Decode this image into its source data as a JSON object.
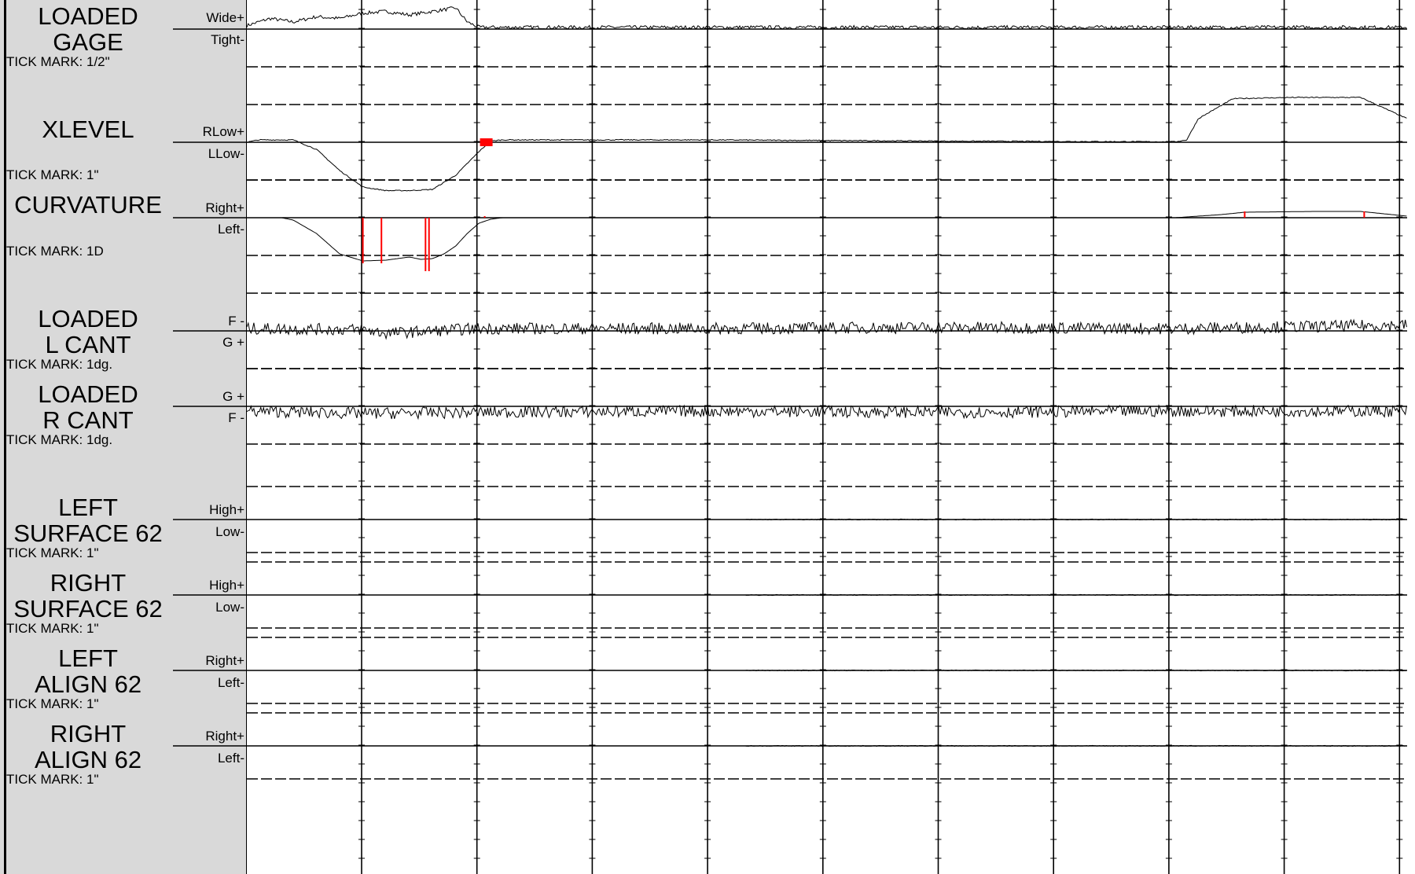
{
  "chart_data": {
    "type": "line",
    "title": "",
    "xlabel": "",
    "ylabel": "",
    "grid": true,
    "vertical_gridlines": 11,
    "colors": {
      "trace": "#000000",
      "exception": "#ff0000",
      "panel": "#d9d9d9"
    },
    "channels": [
      {
        "title": "LOADED\nGAGE",
        "tick_mark": "TICK MARK: 1/2\"",
        "upper_label": "Wide+",
        "lower_label": "Tight-",
        "unit": "in",
        "points": [
          [
            0,
            0.1
          ],
          [
            2,
            0.3
          ],
          [
            4,
            0.2
          ],
          [
            6,
            0.35
          ],
          [
            8,
            0.3
          ],
          [
            10,
            0.45
          ],
          [
            12,
            0.5
          ],
          [
            14,
            0.4
          ],
          [
            16,
            0.5
          ],
          [
            18,
            0.6
          ],
          [
            19,
            0.2
          ],
          [
            20,
            0.05
          ],
          [
            30,
            0.05
          ],
          [
            45,
            0.05
          ],
          [
            60,
            0.05
          ],
          [
            80,
            0.05
          ],
          [
            100,
            0.05
          ]
        ],
        "exceptions": []
      },
      {
        "title": "XLEVEL",
        "tick_mark": "TICK MARK: 1\"",
        "upper_label": "RLow+",
        "lower_label": "LLow-",
        "unit": "in",
        "points": [
          [
            0,
            0
          ],
          [
            1,
            0.1
          ],
          [
            4,
            0.1
          ],
          [
            6,
            -0.3
          ],
          [
            8,
            -1.2
          ],
          [
            10,
            -1.9
          ],
          [
            12,
            -2.05
          ],
          [
            14,
            -2.05
          ],
          [
            16,
            -2.0
          ],
          [
            18,
            -1.4
          ],
          [
            20,
            -0.4
          ],
          [
            21,
            0.05
          ],
          [
            22,
            0.1
          ],
          [
            40,
            0.1
          ],
          [
            60,
            0.05
          ],
          [
            80,
            0.02
          ],
          [
            81,
            0.1
          ],
          [
            82,
            1.0
          ],
          [
            85,
            1.85
          ],
          [
            90,
            1.9
          ],
          [
            96,
            1.9
          ],
          [
            100,
            1.0
          ]
        ],
        "exceptions": [
          {
            "x": 20.5,
            "length": 1
          }
        ]
      },
      {
        "title": "CURVATURE",
        "tick_mark": "TICK MARK: 1D",
        "upper_label": "Right+",
        "lower_label": "Left-",
        "unit": "deg",
        "points": [
          [
            0,
            0
          ],
          [
            3,
            0
          ],
          [
            4,
            -0.3
          ],
          [
            6,
            -2.0
          ],
          [
            8,
            -4.6
          ],
          [
            10,
            -5.5
          ],
          [
            12,
            -5.4
          ],
          [
            14,
            -5.0
          ],
          [
            15,
            -5.3
          ],
          [
            16,
            -5.2
          ],
          [
            17,
            -4.6
          ],
          [
            18,
            -3.6
          ],
          [
            19,
            -2.0
          ],
          [
            20,
            -0.7
          ],
          [
            21,
            -0.2
          ],
          [
            22,
            0
          ],
          [
            40,
            0
          ],
          [
            80,
            0
          ],
          [
            84,
            0.4
          ],
          [
            86,
            0.7
          ],
          [
            92,
            0.8
          ],
          [
            96,
            0.8
          ],
          [
            100,
            0.2
          ]
        ],
        "exceptions": [
          {
            "x": 10,
            "depth": -5.8
          },
          {
            "x": 11.6,
            "depth": -5.8
          },
          {
            "x": 15.4,
            "depth": -6.8
          },
          {
            "x": 15.7,
            "depth": -6.8
          },
          {
            "x": 20.5,
            "depth": 0.2
          },
          {
            "x": 86,
            "height": 0.8
          },
          {
            "x": 96.3,
            "height": 0.8
          }
        ]
      },
      {
        "title": "LOADED\nL CANT",
        "tick_mark": "TICK MARK: 1dg.",
        "upper_label": "F -",
        "lower_label": "G +",
        "unit": "deg",
        "points": [
          [
            0,
            0.1
          ],
          [
            10,
            0.05
          ],
          [
            12,
            -0.1
          ],
          [
            20,
            0.1
          ],
          [
            40,
            0.1
          ],
          [
            60,
            0.15
          ],
          [
            80,
            0.1
          ],
          [
            100,
            0.25
          ]
        ],
        "exceptions": []
      },
      {
        "title": "LOADED\nR CANT",
        "tick_mark": "TICK MARK: 1dg.",
        "upper_label": "G +",
        "lower_label": "F -",
        "unit": "deg",
        "points": [
          [
            0,
            -0.2
          ],
          [
            10,
            -0.3
          ],
          [
            20,
            -0.25
          ],
          [
            40,
            -0.2
          ],
          [
            60,
            -0.25
          ],
          [
            80,
            -0.2
          ],
          [
            100,
            -0.2
          ]
        ],
        "exceptions": []
      },
      {
        "title": "LEFT\nSURFACE 62",
        "tick_mark": "TICK MARK: 1\"",
        "upper_label": "High+",
        "lower_label": "Low-",
        "unit": "in",
        "points": [
          [
            43,
            0
          ],
          [
            100,
            0
          ]
        ],
        "exceptions": []
      },
      {
        "title": "RIGHT\nSURFACE 62",
        "tick_mark": "TICK MARK: 1\"",
        "upper_label": "High+",
        "lower_label": "Low-",
        "unit": "in",
        "points": [
          [
            43,
            0
          ],
          [
            100,
            0
          ]
        ],
        "exceptions": []
      },
      {
        "title": "LEFT\nALIGN 62",
        "tick_mark": "TICK MARK: 1\"",
        "upper_label": "Right+",
        "lower_label": "Left-",
        "unit": "in",
        "points": [
          [
            43,
            0
          ],
          [
            100,
            0
          ]
        ],
        "exceptions": []
      },
      {
        "title": "RIGHT\nALIGN 62",
        "tick_mark": "TICK MARK: 1\"",
        "upper_label": "Right+",
        "lower_label": "Left-",
        "unit": "in",
        "points": [
          [
            43,
            0
          ],
          [
            100,
            0
          ]
        ],
        "exceptions": []
      }
    ]
  }
}
